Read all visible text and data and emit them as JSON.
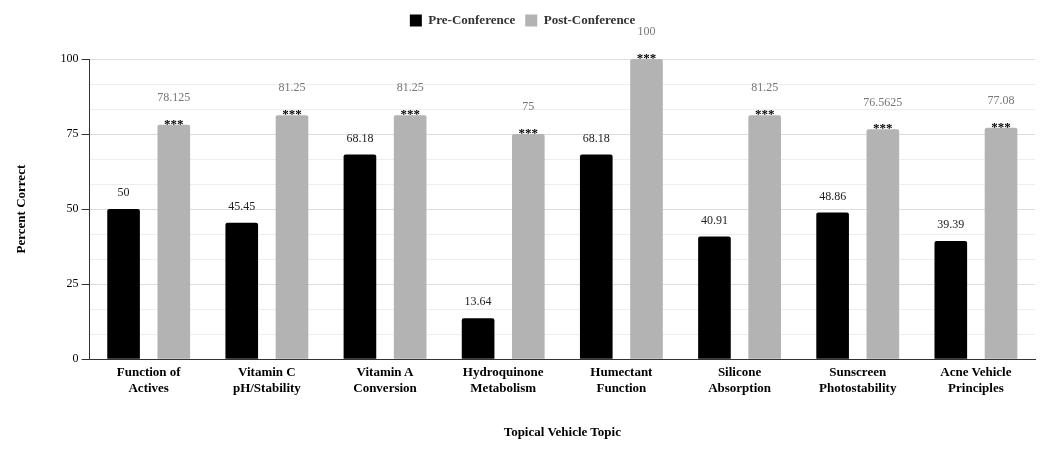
{
  "chart_data": {
    "type": "bar",
    "xlabel": "Topical Vehicle Topic",
    "ylabel": "Percent Correct",
    "categories": [
      "Function of\nActives",
      "Vitamin C\npH/Stability",
      "Vitamin A\nConversion",
      "Hydroquinone\nMetabolism",
      "Humectant\nFunction",
      "Silicone\nAbsorption",
      "Sunscreen\nPhotostability",
      "Acne Vehicle\nPrinciples"
    ],
    "series": [
      {
        "name": "Pre-Conference",
        "color": "#000000",
        "values": [
          50,
          45.45,
          68.18,
          13.64,
          68.18,
          40.91,
          48.86,
          39.39
        ]
      },
      {
        "name": "Post-Conference",
        "color": "#b3b3b3",
        "values": [
          78.125,
          81.25,
          81.25,
          75,
          100,
          81.25,
          76.5625,
          77.08
        ]
      }
    ],
    "ylim": [
      0,
      100
    ],
    "yticks": [
      0,
      {
        "value": 8.33,
        "label": null
      },
      {
        "value": 16.67,
        "label": null
      },
      25,
      {
        "value": 33.33,
        "label": null
      },
      {
        "value": 41.67,
        "label": null
      },
      50,
      {
        "value": 58.33,
        "label": null
      },
      {
        "value": 66.67,
        "label": null
      },
      75,
      {
        "value": 83.33,
        "label": null
      },
      {
        "value": 91.67,
        "label": null
      },
      100
    ],
    "grid": "y",
    "legend": "top",
    "data_labels": true,
    "annotations": [
      "***",
      "***",
      "***",
      "***",
      "***",
      "***",
      "***",
      "***"
    ]
  }
}
